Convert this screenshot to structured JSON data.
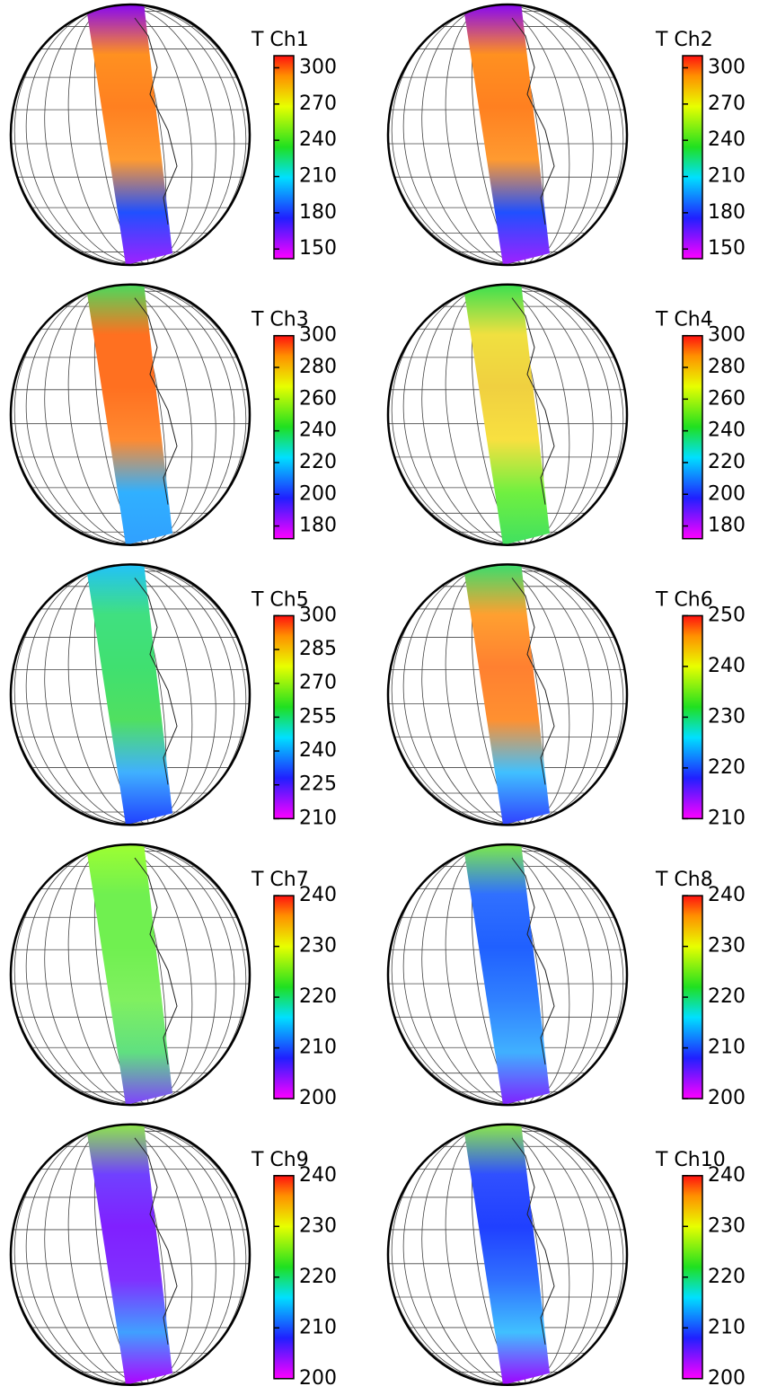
{
  "panels": [
    {
      "title": "T Ch1",
      "lim": [
        142,
        310
      ],
      "ticks": [
        150,
        180,
        210,
        240,
        270,
        300
      ]
    },
    {
      "title": "T Ch2",
      "lim": [
        142,
        310
      ],
      "ticks": [
        150,
        180,
        210,
        240,
        270,
        300
      ]
    },
    {
      "title": "T Ch3",
      "lim": [
        172,
        300
      ],
      "ticks": [
        180,
        200,
        220,
        240,
        260,
        280,
        300
      ]
    },
    {
      "title": "T Ch4",
      "lim": [
        172,
        300
      ],
      "ticks": [
        180,
        200,
        220,
        240,
        260,
        280,
        300
      ]
    },
    {
      "title": "T Ch5",
      "lim": [
        210,
        300
      ],
      "ticks": [
        210,
        225,
        240,
        255,
        270,
        285,
        300
      ]
    },
    {
      "title": "T Ch6",
      "lim": [
        210,
        250
      ],
      "ticks": [
        210,
        220,
        230,
        240,
        250
      ]
    },
    {
      "title": "T Ch7",
      "lim": [
        200,
        240
      ],
      "ticks": [
        200,
        210,
        220,
        230,
        240
      ]
    },
    {
      "title": "T Ch8",
      "lim": [
        200,
        240
      ],
      "ticks": [
        200,
        210,
        220,
        230,
        240
      ]
    },
    {
      "title": "T Ch9",
      "lim": [
        200,
        240
      ],
      "ticks": [
        200,
        210,
        220,
        230,
        240
      ]
    },
    {
      "title": "T Ch10",
      "lim": [
        200,
        240
      ],
      "ticks": [
        200,
        210,
        220,
        230,
        240
      ]
    }
  ]
}
